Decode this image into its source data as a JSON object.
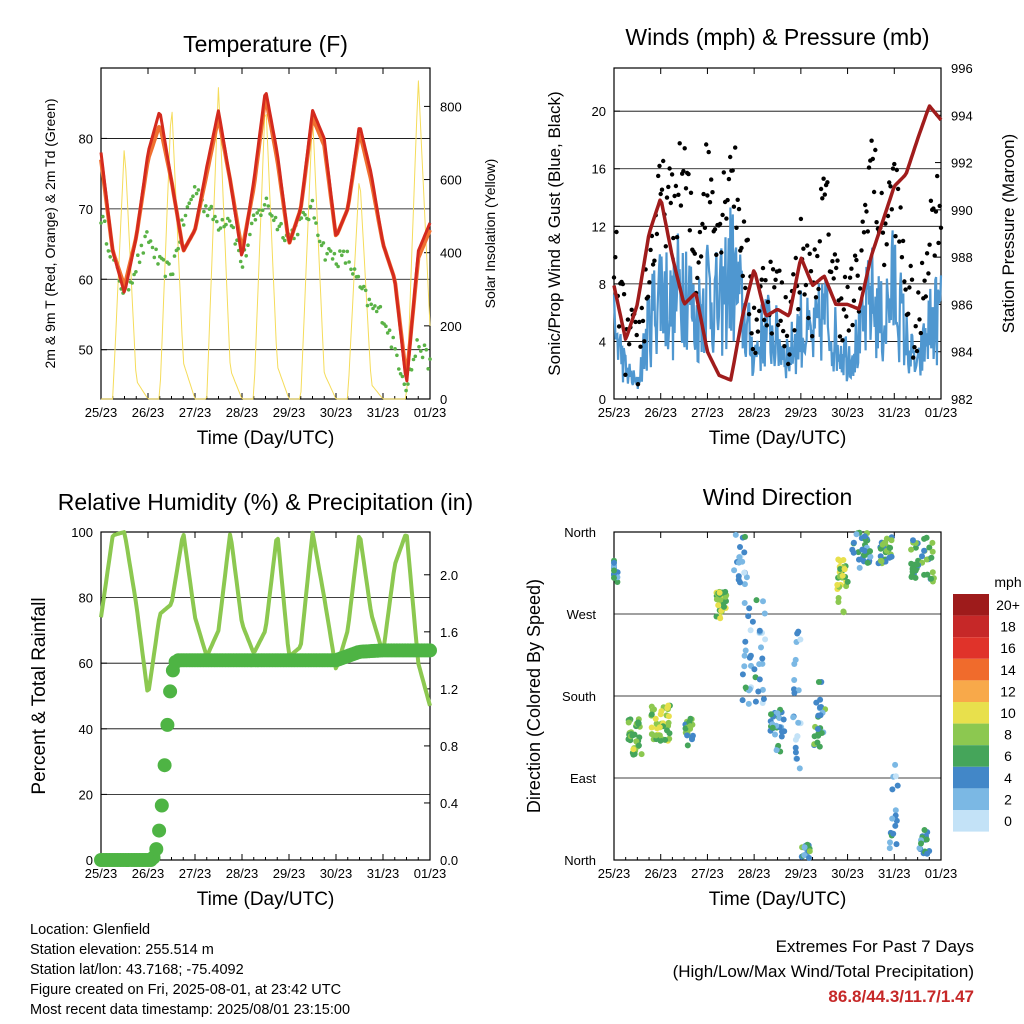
{
  "x_ticks": [
    "25/23",
    "26/23",
    "27/23",
    "28/23",
    "29/23",
    "30/23",
    "31/23",
    "01/23"
  ],
  "chart_data": [
    {
      "type": "line",
      "title": "Temperature (F)",
      "xlabel": "Time (Day/UTC)",
      "ylabel": "2m & 9m T (Red, Orange) & 2m Td (Green)",
      "ylabel_right": "Solar Insolation (Yellow)",
      "ylim": [
        43,
        90
      ],
      "y_ticks": [
        50,
        60,
        70,
        80
      ],
      "ylim_right": [
        0,
        905
      ],
      "y_ticks_right": [
        0,
        200,
        400,
        600,
        800
      ],
      "x": [
        0,
        0.25,
        0.5,
        0.75,
        1,
        1.25,
        1.5,
        1.75,
        2,
        2.25,
        2.5,
        2.75,
        3,
        3.25,
        3.5,
        3.75,
        4,
        4.25,
        4.5,
        4.75,
        5,
        5.25,
        5.5,
        5.75,
        6,
        6.25,
        6.5,
        6.75,
        7
      ],
      "series": [
        {
          "name": "2m T",
          "color": "#d42a1e",
          "values": [
            78,
            64,
            58,
            66,
            78,
            84,
            74,
            64,
            67,
            76,
            84,
            74,
            63,
            74,
            87,
            78,
            65,
            70,
            84,
            80,
            66,
            70,
            82,
            75,
            65,
            60,
            45,
            64,
            68
          ]
        },
        {
          "name": "9m T",
          "color": "#f07030",
          "values": [
            77,
            64,
            59,
            66,
            77,
            82,
            74,
            64,
            67,
            75,
            83,
            74,
            64,
            73,
            86,
            77,
            65,
            70,
            83,
            79,
            66,
            70,
            81,
            74,
            65,
            60,
            46,
            63,
            67
          ]
        },
        {
          "name": "2m Td",
          "color": "#5ab246",
          "values": [
            69,
            63,
            58,
            62,
            66,
            62,
            61,
            68,
            73,
            70,
            68,
            69,
            62,
            68,
            71,
            68,
            66,
            68,
            70,
            64,
            63,
            63,
            59,
            56,
            55,
            50,
            45,
            51,
            48
          ]
        },
        {
          "name": "Solar Insolation",
          "color": "#f5dc5a",
          "values": [
            0,
            0,
            700,
            50,
            0,
            0,
            820,
            100,
            0,
            0,
            860,
            80,
            0,
            0,
            830,
            90,
            0,
            0,
            780,
            70,
            0,
            0,
            620,
            40,
            0,
            0,
            0,
            880,
            200
          ]
        }
      ]
    },
    {
      "type": "line",
      "title": "Winds (mph) & Pressure (mb)",
      "xlabel": "Time (Day/UTC)",
      "ylabel": "Sonic/Prop Wind & Gust (Blue, Black)",
      "ylabel_right": "Station Pressure (Maroon)",
      "ylim": [
        0,
        23
      ],
      "y_ticks": [
        0,
        4,
        8,
        12,
        16,
        20
      ],
      "ylim_right": [
        982,
        996
      ],
      "y_ticks_right": [
        982,
        984,
        986,
        988,
        990,
        992,
        994,
        996
      ],
      "x": [
        0,
        0.25,
        0.5,
        0.75,
        1,
        1.25,
        1.5,
        1.75,
        2,
        2.25,
        2.5,
        2.75,
        3,
        3.25,
        3.5,
        3.75,
        4,
        4.25,
        4.5,
        4.75,
        5,
        5.25,
        5.5,
        5.75,
        6,
        6.25,
        6.5,
        6.75,
        7
      ],
      "series": [
        {
          "name": "Wind",
          "color": "#4f97d0",
          "values": [
            5,
            2,
            1,
            5,
            8,
            6,
            9,
            5,
            8,
            6,
            9,
            6,
            3,
            5,
            4,
            3,
            5,
            4,
            6,
            4,
            3,
            4,
            7,
            5,
            8,
            4,
            2,
            5,
            6
          ]
        },
        {
          "name": "Gust",
          "color": "#000000",
          "values": [
            10,
            4,
            3,
            9,
            14,
            13,
            16,
            9,
            16,
            12,
            17,
            11,
            5,
            8,
            7,
            5,
            10,
            7,
            14,
            8,
            6,
            8,
            17,
            11,
            15,
            8,
            4,
            12,
            14
          ]
        },
        {
          "name": "Station Pressure",
          "color": "#a01c1c",
          "values": [
            986.8,
            984.5,
            986,
            989,
            990.5,
            988,
            986,
            986.5,
            984,
            983,
            982.8,
            985.5,
            987.5,
            985.5,
            985.8,
            985.5,
            988,
            986.8,
            987.2,
            986,
            986,
            985.8,
            988,
            989.5,
            991,
            991.5,
            993,
            994.4,
            993.8
          ]
        }
      ]
    },
    {
      "type": "line",
      "title": "Relative Humidity (%) & Precipitation (in)",
      "xlabel": "Time (Day/UTC)",
      "ylabel": "Percent & Total Rainfall",
      "ylim": [
        0,
        100
      ],
      "y_ticks": [
        0,
        20,
        40,
        60,
        80,
        100
      ],
      "ylim_right": [
        0,
        2.3
      ],
      "y_ticks_right": [
        "0.0",
        "0.4",
        "0.8",
        "1.2",
        "1.6",
        "2.0"
      ],
      "x": [
        0,
        0.25,
        0.5,
        0.75,
        1,
        1.25,
        1.5,
        1.75,
        2,
        2.25,
        2.5,
        2.75,
        3,
        3.25,
        3.5,
        3.75,
        4,
        4.25,
        4.5,
        4.75,
        5,
        5.25,
        5.5,
        5.75,
        6,
        6.25,
        6.5,
        6.75,
        7
      ],
      "series": [
        {
          "name": "Relative Humidity",
          "color": "#8cc850",
          "values": [
            74,
            99,
            100,
            78,
            50,
            75,
            78,
            100,
            74,
            62,
            70,
            100,
            72,
            63,
            70,
            100,
            62,
            65,
            100,
            80,
            58,
            70,
            100,
            75,
            63,
            90,
            100,
            60,
            47
          ]
        },
        {
          "name": "Total Rainfall",
          "color": "#4eb444",
          "x": [
            0,
            0.5,
            1.1,
            1.2,
            1.3,
            1.4,
            1.5,
            1.6,
            1.8,
            3,
            5,
            5.5,
            6,
            7
          ],
          "values": [
            0,
            0,
            0,
            0.1,
            0.4,
            0.9,
            1.3,
            1.4,
            1.4,
            1.4,
            1.4,
            1.46,
            1.47,
            1.47
          ]
        }
      ]
    },
    {
      "type": "scatter",
      "title": "Wind Direction",
      "xlabel": "Time (Day/UTC)",
      "ylabel": "Direction (Colored By Speed)",
      "y_ticks": [
        "North",
        "East",
        "South",
        "West",
        "North"
      ],
      "ylim": [
        0,
        360
      ],
      "legend_title": "mph",
      "legend_labels": [
        "20+",
        "18",
        "16",
        "14",
        "12",
        "10",
        "8",
        "6",
        "4",
        "2",
        "0"
      ],
      "legend_colors": [
        "#9e1b1b",
        "#c62828",
        "#e0332a",
        "#f06b2c",
        "#f8a94a",
        "#e8e04c",
        "#8cc850",
        "#45a55a",
        "#4287c8",
        "#7bb8e4",
        "#c3e2f7"
      ],
      "clusters": [
        {
          "x": 0,
          "dir": 320,
          "spread_x": 0.08,
          "spread_d": 15,
          "speed": 4,
          "n": 14
        },
        {
          "x": 0.45,
          "dir": 135,
          "spread_x": 0.15,
          "spread_d": 20,
          "speed": 7,
          "n": 34
        },
        {
          "x": 1.0,
          "dir": 150,
          "spread_x": 0.2,
          "spread_d": 20,
          "speed": 8,
          "n": 42
        },
        {
          "x": 1.6,
          "dir": 140,
          "spread_x": 0.1,
          "spread_d": 15,
          "speed": 6,
          "n": 18
        },
        {
          "x": 2.3,
          "dir": 280,
          "spread_x": 0.12,
          "spread_d": 15,
          "speed": 8,
          "n": 32
        },
        {
          "x": 2.7,
          "dir": 330,
          "spread_x": 0.15,
          "spread_d": 30,
          "speed": 3,
          "n": 18
        },
        {
          "x": 3.0,
          "dir": 230,
          "spread_x": 0.25,
          "spread_d": 60,
          "speed": 3,
          "n": 40
        },
        {
          "x": 3.5,
          "dir": 140,
          "spread_x": 0.15,
          "spread_d": 25,
          "speed": 4,
          "n": 28
        },
        {
          "x": 3.9,
          "dir": 180,
          "spread_x": 0.1,
          "spread_d": 80,
          "speed": 2,
          "n": 22
        },
        {
          "x": 4.1,
          "dir": 10,
          "spread_x": 0.1,
          "spread_d": 10,
          "speed": 5,
          "n": 14
        },
        {
          "x": 4.4,
          "dir": 160,
          "spread_x": 0.12,
          "spread_d": 40,
          "speed": 5,
          "n": 24
        },
        {
          "x": 4.9,
          "dir": 300,
          "spread_x": 0.12,
          "spread_d": 30,
          "speed": 8,
          "n": 30
        },
        {
          "x": 5.3,
          "dir": 340,
          "spread_x": 0.2,
          "spread_d": 20,
          "speed": 5,
          "n": 34
        },
        {
          "x": 5.8,
          "dir": 340,
          "spread_x": 0.15,
          "spread_d": 15,
          "speed": 6,
          "n": 30
        },
        {
          "x": 6.0,
          "dir": 60,
          "spread_x": 0.1,
          "spread_d": 50,
          "speed": 3,
          "n": 16
        },
        {
          "x": 6.6,
          "dir": 330,
          "spread_x": 0.25,
          "spread_d": 25,
          "speed": 6,
          "n": 40
        },
        {
          "x": 6.6,
          "dir": 20,
          "spread_x": 0.15,
          "spread_d": 15,
          "speed": 4,
          "n": 16
        }
      ]
    }
  ],
  "info": {
    "location": "Location: Glenfield",
    "elevation": "Station elevation: 255.514 m",
    "latlon": "Station lat/lon: 43.7168; -75.4092",
    "created": "Figure created on Fri, 2025-08-01, at 23:42 UTC",
    "timestamp": "Most recent data timestamp: 2025/08/01 23:15:00"
  },
  "extremes": {
    "title": "Extremes For Past 7 Days",
    "subtitle": "(High/Low/Max Wind/Total Precipitation)",
    "values": "86.8/44.3/11.7/1.47"
  }
}
